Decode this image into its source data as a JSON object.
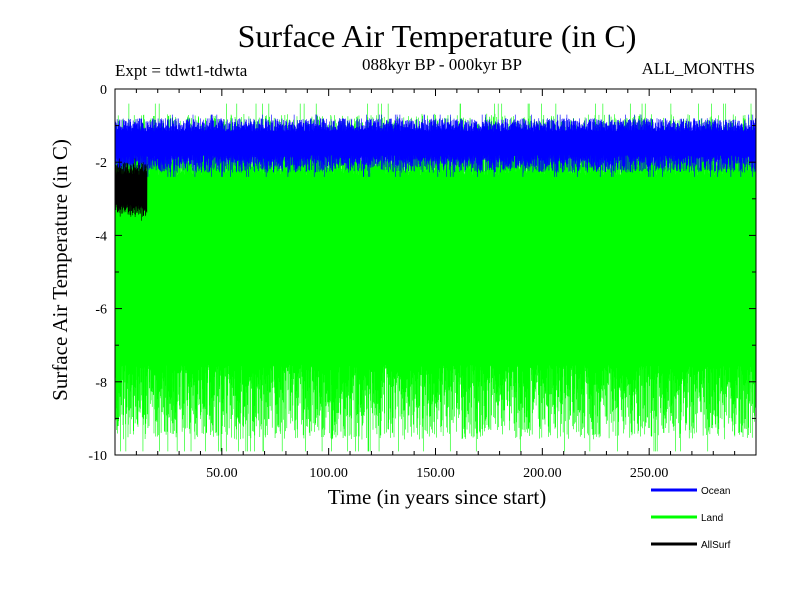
{
  "chart_data": {
    "type": "line",
    "title": "Surface Air Temperature (in C)",
    "subtitle_left": "Expt = tdwt1-tdwta",
    "subtitle_center": "088kyr BP - 000kyr BP",
    "subtitle_right": "ALL_MONTHS",
    "xlabel": "Time (in years since start)",
    "ylabel": "Surface Air Temperature (in C)",
    "xlim": [
      0,
      300
    ],
    "ylim": [
      -10,
      0
    ],
    "x_ticks": [
      50,
      100,
      150,
      200,
      250
    ],
    "x_tick_labels": [
      "50.00",
      "100.00",
      "150.00",
      "200.00",
      "250.00"
    ],
    "y_ticks": [
      0,
      -2,
      -4,
      -6,
      -8,
      -10
    ],
    "y_tick_labels": [
      "0",
      "-2",
      "-4",
      "-6",
      "-8",
      "-10"
    ],
    "series": [
      {
        "name": "Land",
        "color": "#00ff00",
        "x_range": [
          0,
          300
        ],
        "upper_envelope": -1.8,
        "lower_envelope": -8.2,
        "max": -0.4,
        "min": -9.9,
        "description": "dense monthly signal"
      },
      {
        "name": "Ocean",
        "color": "#0000ff",
        "x_range": [
          0,
          300
        ],
        "upper_envelope": -1.0,
        "lower_envelope": -2.0,
        "max": -0.7,
        "min": -2.4,
        "description": "dense monthly signal"
      },
      {
        "name": "AllSurf",
        "color": "#000000",
        "x_range": [
          0,
          15
        ],
        "upper_envelope": -2.2,
        "lower_envelope": -3.3,
        "max": -1.9,
        "min": -3.6,
        "description": "dense monthly signal"
      }
    ],
    "legend": [
      {
        "label": "Ocean",
        "color": "#0000ff"
      },
      {
        "label": "Land",
        "color": "#00ff00"
      },
      {
        "label": "AllSurf",
        "color": "#000000"
      }
    ],
    "legend_position": "bottom-right"
  }
}
